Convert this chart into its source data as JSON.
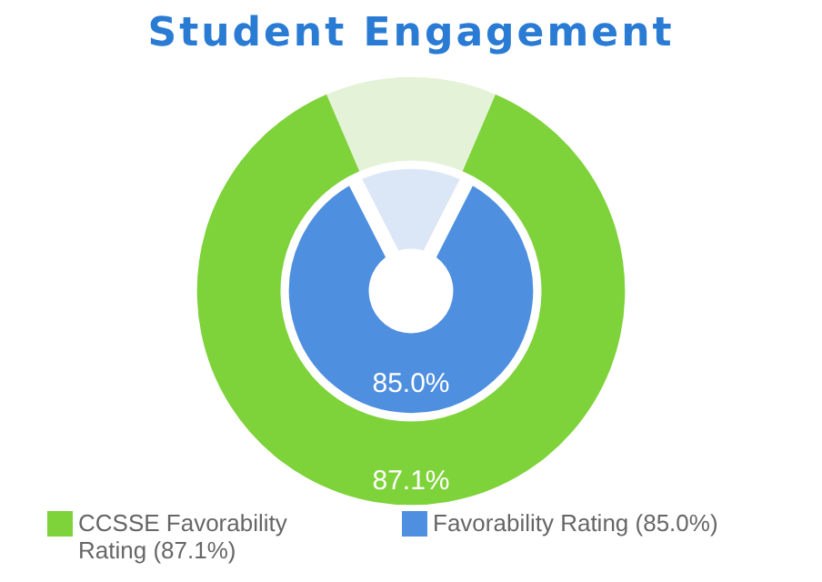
{
  "chart_data": {
    "type": "donut",
    "title": "Student Engagement",
    "categories": [
      null,
      null
    ],
    "legend": "bottom",
    "series": [
      {
        "name": "CCSSE Favorability Rating (87.1%)",
        "color": "#7ed23a",
        "colors": [
          "#7ed23a",
          "#e4f2d8"
        ],
        "values": [
          87.1,
          12.9
        ],
        "value_labels": [
          "87.1%",
          null
        ]
      },
      {
        "name": "Favorability Rating (85.0%)",
        "color": "#4f8fe0",
        "colors": [
          "#4f8fe0",
          "#dbe7f7"
        ],
        "values": [
          85.0,
          15.0
        ],
        "value_labels": [
          "85.0%",
          null
        ]
      }
    ]
  }
}
